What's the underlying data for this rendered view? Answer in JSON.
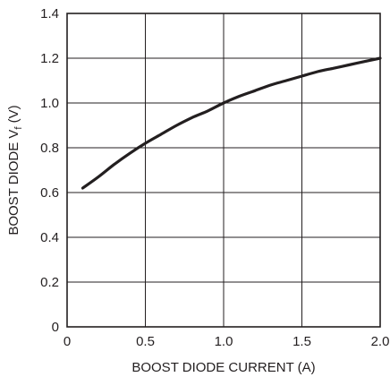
{
  "chart_data": {
    "type": "line",
    "title": "",
    "xlabel": "BOOST DIODE CURRENT (A)",
    "ylabel": "BOOST DIODE V",
    "ylabel_subscript": "f",
    "ylabel_unit": " (V)",
    "xlim": [
      0,
      2.0
    ],
    "ylim": [
      0,
      1.4
    ],
    "x_ticks": [
      "0",
      "0.5",
      "1.0",
      "1.5",
      "2.0"
    ],
    "y_ticks": [
      "0",
      "0.2",
      "0.4",
      "0.6",
      "0.8",
      "1.0",
      "1.2",
      "1.4"
    ],
    "grid": true,
    "series": [
      {
        "x": [
          0.1,
          0.2,
          0.3,
          0.4,
          0.5,
          0.6,
          0.7,
          0.8,
          0.9,
          1.0,
          1.1,
          1.2,
          1.3,
          1.4,
          1.5,
          1.6,
          1.7,
          1.8,
          1.9,
          2.0
        ],
        "y": [
          0.62,
          0.67,
          0.725,
          0.775,
          0.82,
          0.86,
          0.9,
          0.935,
          0.965,
          1.0,
          1.03,
          1.055,
          1.08,
          1.1,
          1.12,
          1.14,
          1.155,
          1.17,
          1.185,
          1.2
        ],
        "color": "#231f20"
      }
    ]
  }
}
